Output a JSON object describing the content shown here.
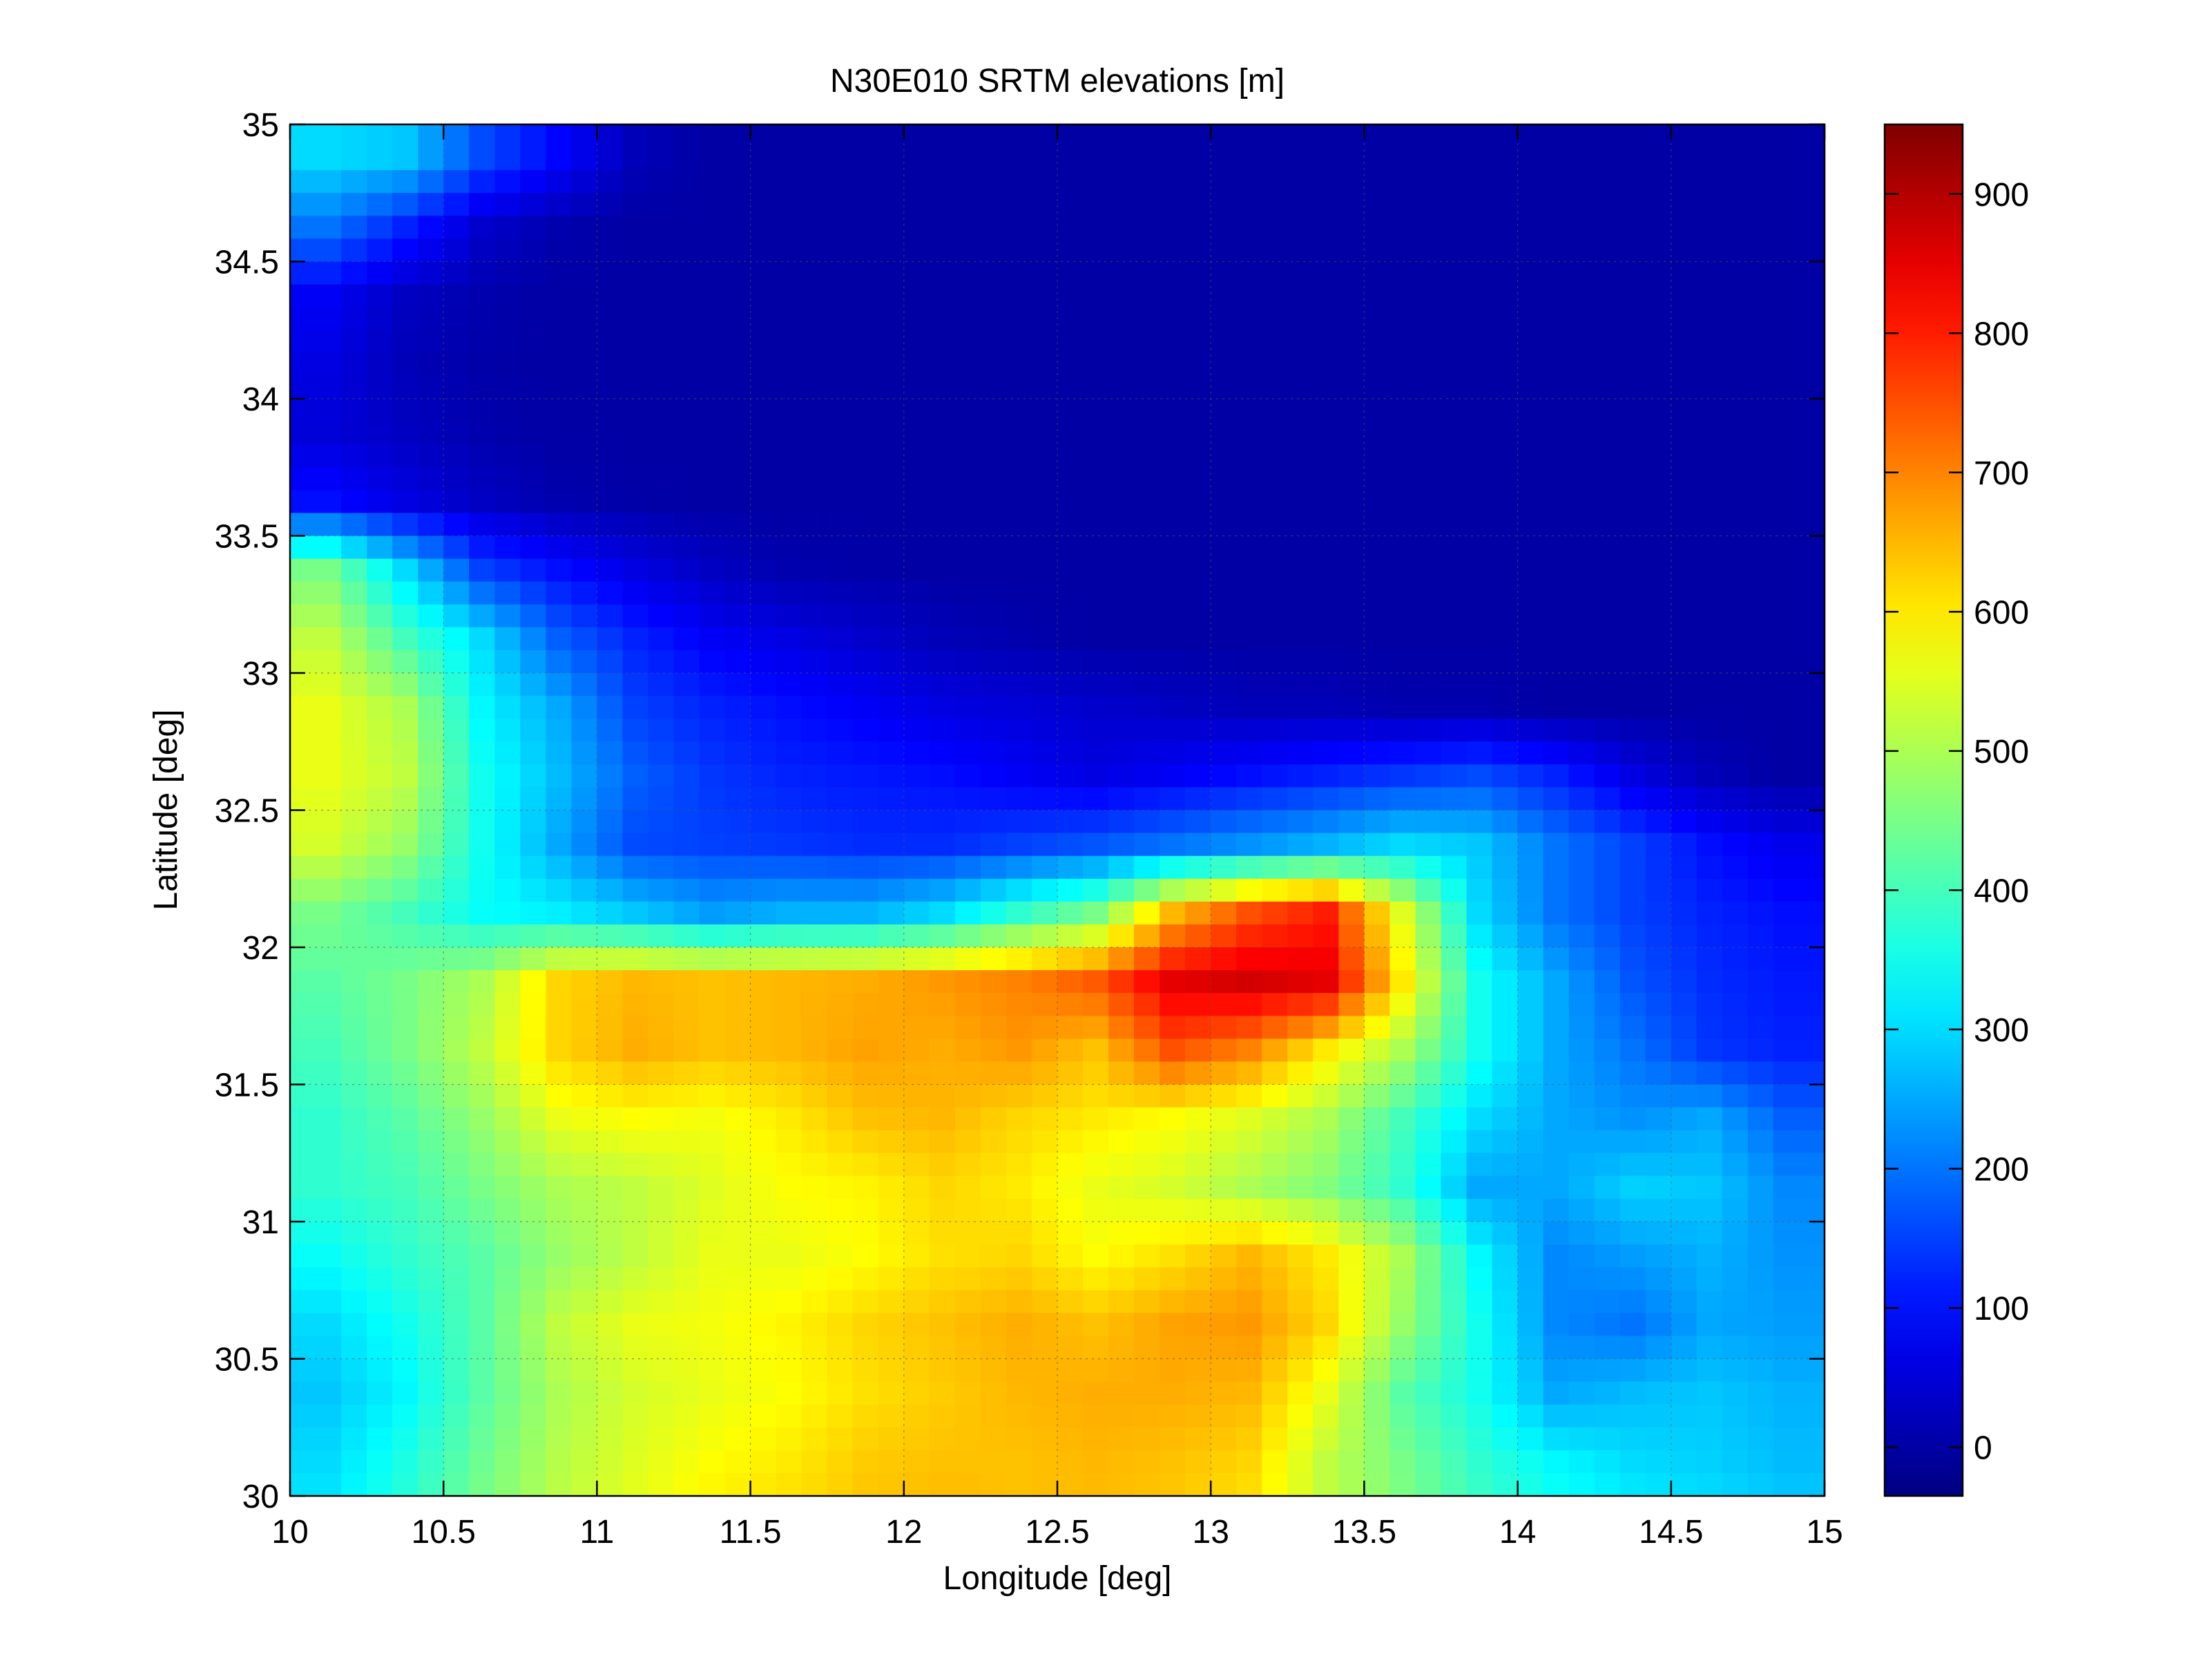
{
  "chart_data": {
    "type": "heatmap",
    "title": "N30E010 SRTM elevations [m]",
    "xlabel": "Longitude [deg]",
    "ylabel": "Latitude [deg]",
    "xlim": [
      10,
      15
    ],
    "ylim": [
      30,
      35
    ],
    "xticks": [
      10,
      10.5,
      11,
      11.5,
      12,
      12.5,
      13,
      13.5,
      14,
      14.5,
      15
    ],
    "xtick_labels": [
      "10",
      "10.5",
      "11",
      "11.5",
      "12",
      "12.5",
      "13",
      "13.5",
      "14",
      "14.5",
      "15"
    ],
    "yticks": [
      30,
      30.5,
      31,
      31.5,
      32,
      32.5,
      33,
      33.5,
      34,
      34.5,
      35
    ],
    "ytick_labels": [
      "30",
      "30.5",
      "31",
      "31.5",
      "32",
      "32.5",
      "33",
      "33.5",
      "34",
      "34.5",
      "35"
    ],
    "grid": true,
    "colormap": "jet",
    "colorbar": {
      "clim": [
        -35,
        950
      ],
      "ticks": [
        0,
        100,
        200,
        300,
        400,
        500,
        600,
        700,
        800,
        900
      ],
      "tick_labels": [
        "0",
        "100",
        "200",
        "300",
        "400",
        "500",
        "600",
        "700",
        "800",
        "900"
      ]
    },
    "grid_x_step_deg": 0.25,
    "grid_y_step_deg": 0.25,
    "elevation_grid": [
      [
        300,
        280,
        160,
        90,
        20,
        0,
        0,
        0,
        0,
        0,
        0,
        0,
        0,
        0,
        0,
        0,
        0,
        0,
        0,
        0
      ],
      [
        200,
        120,
        40,
        10,
        0,
        0,
        0,
        0,
        0,
        0,
        0,
        0,
        0,
        0,
        0,
        0,
        0,
        0,
        0,
        0
      ],
      [
        80,
        30,
        10,
        0,
        0,
        0,
        0,
        0,
        0,
        0,
        0,
        0,
        0,
        0,
        0,
        0,
        0,
        0,
        0,
        0
      ],
      [
        60,
        20,
        5,
        0,
        0,
        0,
        0,
        0,
        0,
        0,
        0,
        0,
        0,
        0,
        0,
        0,
        0,
        0,
        0,
        0
      ],
      [
        50,
        30,
        10,
        0,
        0,
        0,
        0,
        0,
        0,
        0,
        0,
        0,
        0,
        0,
        0,
        0,
        0,
        0,
        0,
        0
      ],
      [
        100,
        60,
        30,
        10,
        5,
        0,
        0,
        0,
        0,
        0,
        0,
        0,
        0,
        0,
        0,
        0,
        0,
        0,
        0,
        0
      ],
      [
        450,
        300,
        150,
        100,
        60,
        30,
        10,
        5,
        0,
        0,
        0,
        0,
        0,
        0,
        0,
        0,
        0,
        0,
        0,
        0
      ],
      [
        520,
        400,
        300,
        180,
        120,
        80,
        60,
        40,
        20,
        10,
        0,
        0,
        0,
        0,
        0,
        0,
        0,
        0,
        0,
        0
      ],
      [
        560,
        500,
        330,
        250,
        150,
        120,
        100,
        80,
        60,
        50,
        40,
        30,
        20,
        20,
        10,
        10,
        0,
        0,
        0,
        0
      ],
      [
        560,
        520,
        350,
        270,
        180,
        140,
        120,
        110,
        100,
        80,
        60,
        80,
        100,
        120,
        140,
        160,
        120,
        60,
        20,
        0
      ],
      [
        540,
        480,
        350,
        250,
        160,
        150,
        140,
        130,
        130,
        150,
        170,
        200,
        230,
        260,
        300,
        280,
        200,
        150,
        100,
        70
      ],
      [
        450,
        400,
        340,
        320,
        280,
        240,
        260,
        260,
        300,
        380,
        450,
        650,
        750,
        800,
        550,
        300,
        200,
        150,
        120,
        100
      ],
      [
        420,
        450,
        500,
        620,
        650,
        640,
        650,
        660,
        680,
        700,
        740,
        850,
        870,
        850,
        600,
        350,
        250,
        170,
        130,
        110
      ],
      [
        400,
        450,
        520,
        620,
        660,
        640,
        650,
        670,
        660,
        680,
        640,
        750,
        700,
        600,
        500,
        350,
        250,
        200,
        140,
        120
      ],
      [
        380,
        420,
        480,
        560,
        580,
        570,
        600,
        640,
        650,
        620,
        600,
        580,
        550,
        500,
        400,
        300,
        250,
        230,
        250,
        180
      ],
      [
        380,
        400,
        450,
        500,
        520,
        550,
        580,
        590,
        620,
        600,
        560,
        540,
        500,
        460,
        380,
        250,
        250,
        290,
        280,
        220
      ],
      [
        340,
        380,
        420,
        480,
        520,
        560,
        560,
        580,
        610,
        620,
        580,
        610,
        650,
        600,
        500,
        330,
        220,
        240,
        260,
        230
      ],
      [
        300,
        350,
        420,
        520,
        560,
        570,
        590,
        620,
        640,
        660,
        640,
        670,
        680,
        620,
        480,
        350,
        220,
        200,
        250,
        240
      ],
      [
        280,
        330,
        420,
        500,
        540,
        560,
        580,
        610,
        630,
        650,
        660,
        660,
        650,
        560,
        420,
        350,
        250,
        270,
        280,
        260
      ],
      [
        300,
        360,
        440,
        510,
        550,
        580,
        600,
        630,
        640,
        640,
        650,
        640,
        620,
        520,
        450,
        380,
        330,
        300,
        290,
        270
      ],
      [
        320,
        380,
        460,
        520,
        560,
        600,
        620,
        640,
        650,
        640,
        640,
        630,
        600,
        520,
        460,
        400,
        360,
        330,
        310,
        290
      ]
    ]
  }
}
